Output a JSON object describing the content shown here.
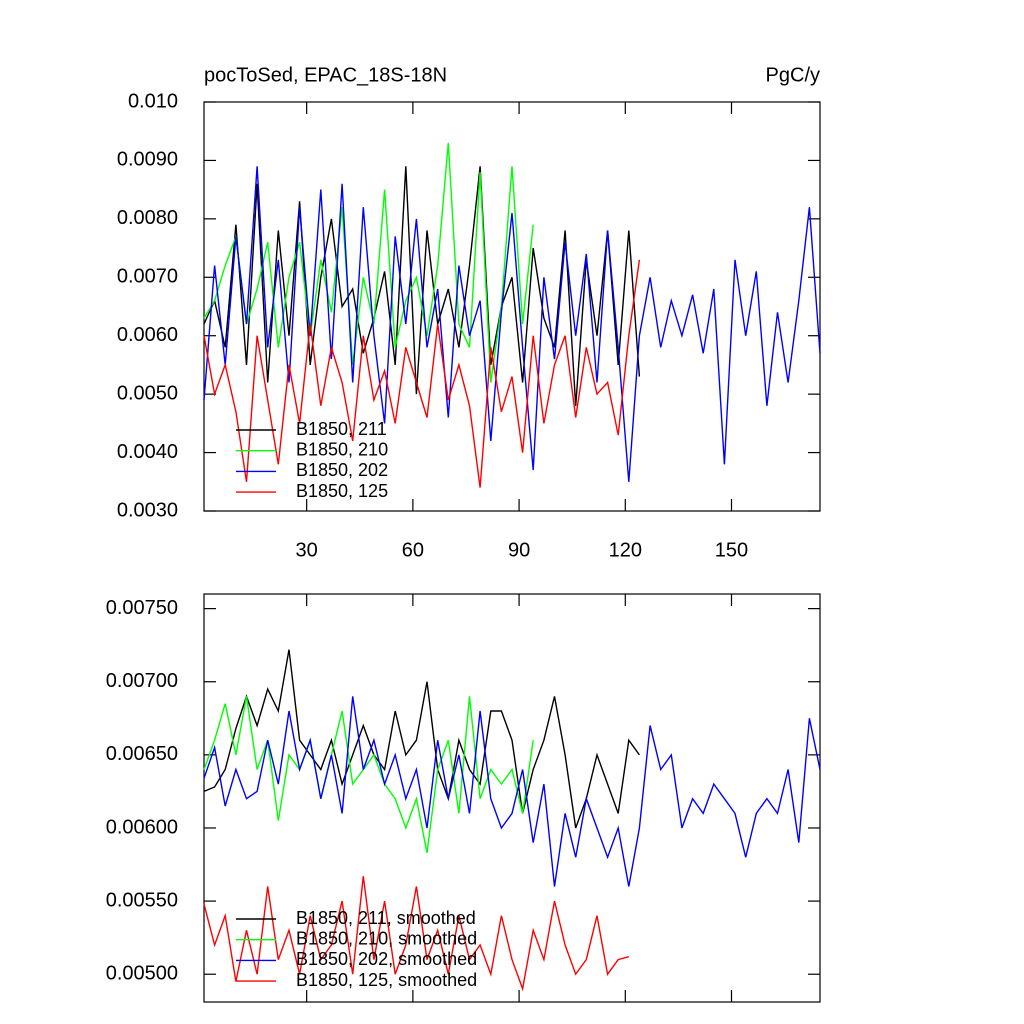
{
  "chart_data": [
    {
      "type": "line",
      "title": "pocToSed, EPAC_18S-18N",
      "units": "PgC/y",
      "x": [
        1,
        4,
        7,
        10,
        13,
        16,
        19,
        22,
        25,
        28,
        31,
        34,
        37,
        40,
        43,
        46,
        49,
        52,
        55,
        58,
        61,
        64,
        67,
        70,
        73,
        76,
        79,
        82,
        85,
        88,
        91,
        94,
        97,
        100,
        103,
        106,
        109,
        112,
        115,
        118,
        121,
        124,
        127,
        130,
        133,
        136,
        139,
        142,
        145,
        148,
        151,
        154,
        157,
        160,
        163,
        166,
        169,
        172,
        175
      ],
      "xlim": [
        1,
        175
      ],
      "xticks": [
        30,
        60,
        90,
        120,
        150
      ],
      "ylim": [
        0.003,
        0.01
      ],
      "yticks": [
        {
          "value": 0.003,
          "label": "0.0030"
        },
        {
          "value": 0.004,
          "label": "0.0040"
        },
        {
          "value": 0.005,
          "label": "0.0050"
        },
        {
          "value": 0.006,
          "label": "0.0060"
        },
        {
          "value": 0.007,
          "label": "0.0070"
        },
        {
          "value": 0.008,
          "label": "0.0080"
        },
        {
          "value": 0.009,
          "label": "0.0090"
        },
        {
          "value": 0.01,
          "label": "0.010"
        }
      ],
      "series": [
        {
          "name": "B1850, 211",
          "color": "#000000",
          "values": [
            0.0062,
            0.0066,
            0.0058,
            0.0079,
            0.0055,
            0.0086,
            0.0052,
            0.0078,
            0.006,
            0.0083,
            0.0055,
            0.007,
            0.008,
            0.0065,
            0.0068,
            0.0057,
            0.0063,
            0.0071,
            0.0055,
            0.0089,
            0.005,
            0.0078,
            0.0062,
            0.0068,
            0.0058,
            0.0072,
            0.0089,
            0.0055,
            0.0065,
            0.007,
            0.0052,
            0.0075,
            0.0063,
            0.0058,
            0.0078,
            0.0048,
            0.0073,
            0.006,
            0.0078,
            0.0055,
            0.0078,
            0.0053,
            null,
            null,
            null,
            null,
            null,
            null,
            null,
            null,
            null,
            null,
            null,
            null,
            null,
            null,
            null,
            null,
            null
          ]
        },
        {
          "name": "B1850, 210",
          "color": "#00ff00",
          "values": [
            0.0063,
            0.0066,
            0.0072,
            0.0077,
            0.0062,
            0.0068,
            0.0076,
            0.0058,
            0.007,
            0.0076,
            0.006,
            0.0073,
            0.0064,
            0.0082,
            0.0055,
            0.007,
            0.0062,
            0.0085,
            0.0058,
            0.0066,
            0.007,
            0.006,
            0.0072,
            0.0093,
            0.0062,
            0.0058,
            0.0088,
            0.0052,
            0.0065,
            0.0089,
            0.0062,
            0.0079,
            null,
            null,
            null,
            null,
            null,
            null,
            null,
            null,
            null,
            null,
            null,
            null,
            null,
            null,
            null,
            null,
            null,
            null,
            null,
            null,
            null,
            null,
            null,
            null,
            null,
            null,
            null
          ]
        },
        {
          "name": "B1850, 202",
          "color": "#0000ff",
          "values": [
            0.0049,
            0.0072,
            0.0055,
            0.0077,
            0.0062,
            0.0089,
            0.0058,
            0.0073,
            0.0052,
            0.0082,
            0.006,
            0.0085,
            0.0056,
            0.0086,
            0.0052,
            0.0082,
            0.006,
            0.0045,
            0.0077,
            0.0062,
            0.008,
            0.0058,
            0.0068,
            0.0046,
            0.0072,
            0.006,
            0.0066,
            0.0042,
            0.0064,
            0.0081,
            0.0058,
            0.0037,
            0.007,
            0.0056,
            0.0076,
            0.006,
            0.0074,
            0.0052,
            0.0078,
            0.0058,
            0.0035,
            0.006,
            0.007,
            0.0058,
            0.0066,
            0.006,
            0.0067,
            0.0057,
            0.0068,
            0.0038,
            0.0073,
            0.006,
            0.0071,
            0.0048,
            0.0064,
            0.0052,
            0.0066,
            0.0082,
            0.0057
          ]
        },
        {
          "name": "B1850, 125",
          "color": "#ff0000",
          "values": [
            0.006,
            0.005,
            0.0055,
            0.0047,
            0.0035,
            0.006,
            0.0049,
            0.0038,
            0.0055,
            0.0045,
            0.0062,
            0.0048,
            0.0058,
            0.0052,
            0.0042,
            0.006,
            0.0049,
            0.0054,
            0.0045,
            0.0058,
            0.0052,
            0.0046,
            0.0062,
            0.0049,
            0.0055,
            0.0048,
            0.0034,
            0.0058,
            0.0047,
            0.0053,
            0.004,
            0.006,
            0.0045,
            0.0055,
            0.006,
            0.0046,
            0.0058,
            0.005,
            0.0052,
            0.0043,
            0.006,
            0.0073,
            null,
            null,
            null,
            null,
            null,
            null,
            null,
            null,
            null,
            null,
            null,
            null,
            null,
            null,
            null,
            null,
            null
          ]
        }
      ]
    },
    {
      "type": "line",
      "x": [
        1,
        4,
        7,
        10,
        13,
        16,
        19,
        22,
        25,
        28,
        31,
        34,
        37,
        40,
        43,
        46,
        49,
        52,
        55,
        58,
        61,
        64,
        67,
        70,
        73,
        76,
        79,
        82,
        85,
        88,
        91,
        94,
        97,
        100,
        103,
        106,
        109,
        112,
        115,
        118,
        121,
        124,
        127,
        130,
        133,
        136,
        139,
        142,
        145,
        148,
        151,
        154,
        157,
        160,
        163,
        166,
        169,
        172,
        175
      ],
      "xlim": [
        1,
        175
      ],
      "ylim": [
        0.00481,
        0.0076
      ],
      "yticks": [
        {
          "value": 0.005,
          "label": "0.00500"
        },
        {
          "value": 0.0055,
          "label": "0.00550"
        },
        {
          "value": 0.006,
          "label": "0.00600"
        },
        {
          "value": 0.0065,
          "label": "0.00650"
        },
        {
          "value": 0.007,
          "label": "0.00700"
        },
        {
          "value": 0.0075,
          "label": "0.00750"
        }
      ],
      "series": [
        {
          "name": "B1850, 211, smoothed",
          "color": "#000000",
          "values": [
            0.00625,
            0.00628,
            0.0064,
            0.00668,
            0.0069,
            0.0067,
            0.00695,
            0.0068,
            0.00722,
            0.0066,
            0.0065,
            0.0064,
            0.0066,
            0.0063,
            0.0065,
            0.0067,
            0.0065,
            0.0064,
            0.0068,
            0.0065,
            0.0066,
            0.007,
            0.0064,
            0.0062,
            0.0066,
            0.0064,
            0.0063,
            0.0068,
            0.0068,
            0.0066,
            0.0061,
            0.0064,
            0.0066,
            0.0069,
            0.0065,
            0.006,
            0.0062,
            0.0065,
            0.0063,
            0.0061,
            0.0066,
            0.0065,
            null,
            null,
            null,
            null,
            null,
            null,
            null,
            null,
            null,
            null,
            null,
            null,
            null,
            null,
            null,
            null,
            null
          ]
        },
        {
          "name": "B1850, 210, smoothed",
          "color": "#00ff00",
          "values": [
            0.0064,
            0.0066,
            0.00685,
            0.0065,
            0.0069,
            0.0064,
            0.0066,
            0.00605,
            0.0065,
            0.0064,
            0.0066,
            0.0062,
            0.0065,
            0.0068,
            0.0063,
            0.0064,
            0.0065,
            0.0063,
            0.0062,
            0.006,
            0.0062,
            0.00583,
            0.0064,
            0.0066,
            0.0061,
            0.0069,
            0.0062,
            0.0064,
            0.0063,
            0.0064,
            0.0061,
            0.0066,
            null,
            null,
            null,
            null,
            null,
            null,
            null,
            null,
            null,
            null,
            null,
            null,
            null,
            null,
            null,
            null,
            null,
            null,
            null,
            null,
            null,
            null,
            null,
            null,
            null,
            null,
            null
          ]
        },
        {
          "name": "B1850, 202, smoothed",
          "color": "#0000ff",
          "values": [
            0.00634,
            0.00655,
            0.00615,
            0.0064,
            0.0062,
            0.00625,
            0.0066,
            0.0063,
            0.0068,
            0.0064,
            0.0066,
            0.0062,
            0.0065,
            0.0061,
            0.0069,
            0.0064,
            0.0066,
            0.0063,
            0.0065,
            0.0062,
            0.0064,
            0.006,
            0.0066,
            0.0062,
            0.0065,
            0.0061,
            0.0068,
            0.0062,
            0.006,
            0.0061,
            0.0064,
            0.0059,
            0.0063,
            0.0056,
            0.0061,
            0.0058,
            0.0062,
            0.006,
            0.0058,
            0.006,
            0.0056,
            0.006,
            0.0067,
            0.0064,
            0.0065,
            0.006,
            0.0062,
            0.0061,
            0.0063,
            0.0062,
            0.0061,
            0.0058,
            0.0061,
            0.0062,
            0.0061,
            0.0064,
            0.0059,
            0.00675,
            0.0064
          ]
        },
        {
          "name": "B1850, 125, smoothed",
          "color": "#ff0000",
          "values": [
            0.00548,
            0.0052,
            0.0054,
            0.00495,
            0.0053,
            0.005,
            0.0056,
            0.0051,
            0.0053,
            0.005,
            0.0054,
            0.0051,
            0.0052,
            0.0055,
            0.005,
            0.00567,
            0.0051,
            0.0055,
            0.005,
            0.0052,
            0.0056,
            0.0051,
            0.0053,
            0.005,
            0.0054,
            0.0051,
            0.0052,
            0.005,
            0.0054,
            0.0051,
            0.0049,
            0.0053,
            0.0051,
            0.0055,
            0.0052,
            0.005,
            0.0051,
            0.0054,
            0.005,
            0.0051,
            0.00512,
            null,
            null,
            null,
            null,
            null,
            null,
            null,
            null,
            null,
            null,
            null,
            null,
            null,
            null,
            null,
            null,
            null,
            null
          ]
        }
      ]
    }
  ]
}
